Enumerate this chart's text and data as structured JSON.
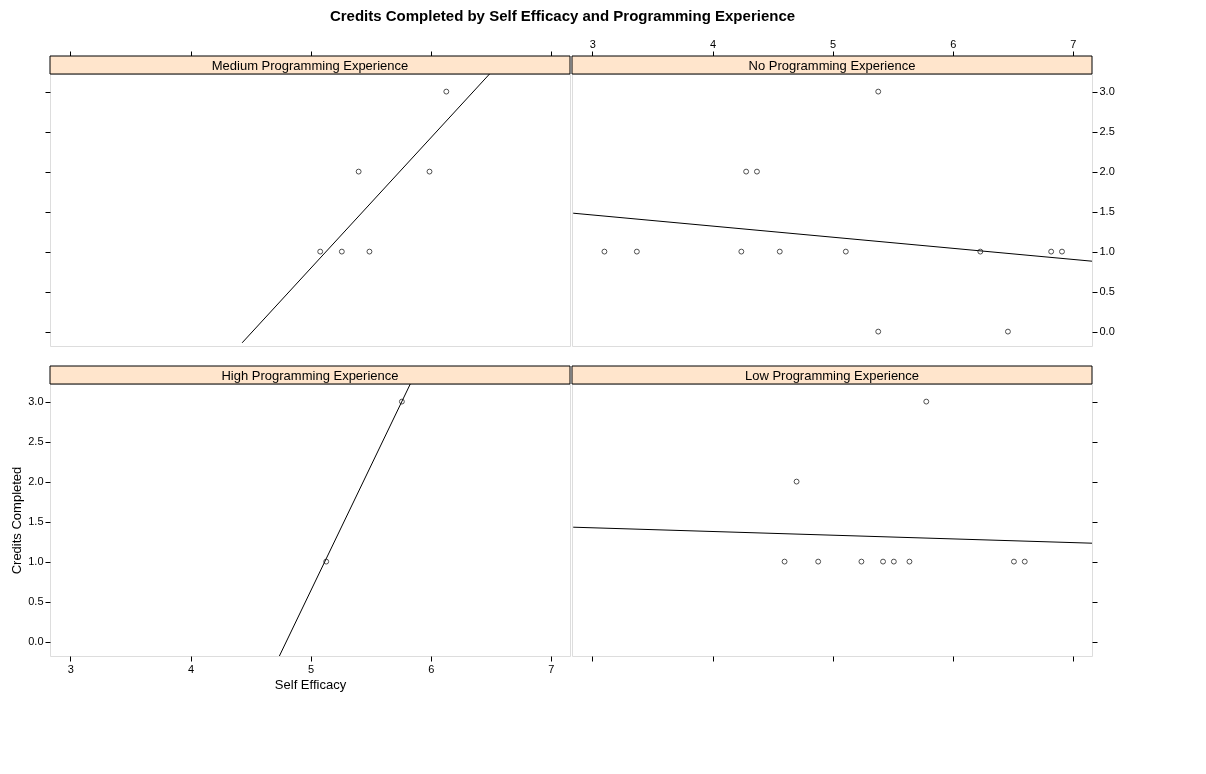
{
  "chart_data": [
    {
      "type": "scatter",
      "title": "Medium Programming Experience",
      "annotations": [
        "Credits Completed by Self Efficacy and Programming Experience"
      ],
      "xlim": [
        2.83,
        7.16
      ],
      "ylim": [
        -0.18,
        3.22
      ],
      "xticks": [
        3,
        4,
        5,
        6,
        7
      ],
      "yticks": [
        0,
        0.5,
        1,
        1.5,
        2,
        2.5,
        3
      ],
      "tick_labels": false,
      "grid": false,
      "series": [
        {
          "type": "scatter",
          "marker": "circle",
          "color": "#000000",
          "x": [
            5.08,
            5.26,
            5.49,
            5.4,
            5.99,
            6.13
          ],
          "values": [
            1,
            1,
            1,
            2,
            2,
            3
          ]
        },
        {
          "type": "line",
          "marker": "none",
          "color": "#000000",
          "x": [
            4.43,
            6.49
          ],
          "values": [
            -0.14,
            3.22
          ]
        }
      ]
    },
    {
      "type": "scatter",
      "title": "No Programming Experience",
      "xlim": [
        2.83,
        7.16
      ],
      "ylim": [
        -0.18,
        3.22
      ],
      "xticks": [
        3,
        4,
        5,
        6,
        7
      ],
      "yticks": [
        {
          "value": 0,
          "label": "0.0"
        },
        0.5,
        {
          "value": 1,
          "label": "1.0"
        },
        1.5,
        {
          "value": 2,
          "label": "2.0"
        },
        2.5,
        {
          "value": 3,
          "label": "3.0"
        }
      ],
      "grid": false,
      "series": [
        {
          "type": "scatter",
          "marker": "circle",
          "color": "#000000",
          "x": [
            3.1,
            3.37,
            4.24,
            4.56,
            5.11,
            6.23,
            6.82,
            6.91,
            4.28,
            4.37,
            5.38,
            5.38,
            6.46
          ],
          "values": [
            1,
            1,
            1,
            1,
            1,
            1,
            1,
            1,
            2,
            2,
            3,
            0,
            0
          ]
        },
        {
          "type": "line",
          "marker": "none",
          "color": "#000000",
          "x": [
            2.84,
            7.16
          ],
          "values": [
            1.48,
            0.88
          ]
        }
      ]
    },
    {
      "type": "scatter",
      "title": "High Programming Experience",
      "xlabel": "Self Efficacy",
      "ylabel": "Credits Completed",
      "xlim": [
        2.83,
        7.16
      ],
      "ylim": [
        -0.18,
        3.22
      ],
      "xticks": [
        3,
        4,
        5,
        6,
        7
      ],
      "yticks": [
        {
          "value": 0,
          "label": "0.0"
        },
        0.5,
        {
          "value": 1,
          "label": "1.0"
        },
        1.5,
        {
          "value": 2,
          "label": "2.0"
        },
        2.5,
        {
          "value": 3,
          "label": "3.0"
        }
      ],
      "grid": false,
      "series": [
        {
          "type": "scatter",
          "marker": "circle",
          "color": "#000000",
          "x": [
            5.13,
            5.76
          ],
          "values": [
            1,
            3
          ]
        },
        {
          "type": "line",
          "marker": "none",
          "color": "#000000",
          "x": [
            4.74,
            5.83
          ],
          "values": [
            -0.18,
            3.22
          ]
        }
      ]
    },
    {
      "type": "scatter",
      "title": "Low Programming Experience",
      "xlim": [
        2.83,
        7.16
      ],
      "ylim": [
        -0.18,
        3.22
      ],
      "xticks": [
        3,
        4,
        5,
        6,
        7
      ],
      "yticks": [
        0,
        0.5,
        1,
        1.5,
        2,
        2.5,
        3
      ],
      "tick_labels": false,
      "grid": false,
      "series": [
        {
          "type": "scatter",
          "marker": "circle",
          "color": "#000000",
          "x": [
            4.6,
            4.88,
            5.24,
            5.42,
            5.51,
            5.64,
            6.51,
            6.6,
            4.7,
            5.78
          ],
          "values": [
            1,
            1,
            1,
            1,
            1,
            1,
            1,
            1,
            2,
            3
          ]
        },
        {
          "type": "line",
          "marker": "none",
          "color": "#000000",
          "x": [
            2.84,
            7.16
          ],
          "values": [
            1.43,
            1.23
          ]
        }
      ]
    }
  ]
}
